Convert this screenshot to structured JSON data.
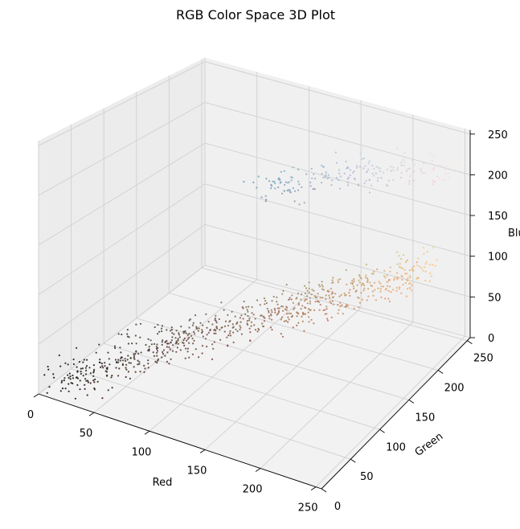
{
  "chart_data": {
    "type": "scatter",
    "projection": "3d",
    "title": "RGB Color Space 3D Plot",
    "xlabel": "Red",
    "ylabel": "Green",
    "zlabel": "Blue",
    "xlim": [
      0,
      255
    ],
    "ylim": [
      0,
      255
    ],
    "zlim": [
      0,
      255
    ],
    "xticks": [
      0,
      50,
      100,
      150,
      200,
      250
    ],
    "yticks": [
      0,
      50,
      100,
      150,
      200,
      250
    ],
    "zticks": [
      0,
      50,
      100,
      150,
      200,
      250
    ],
    "grid": true,
    "point_color_rule": "each point is drawn in its own RGB color",
    "series": [
      {
        "values": [
          [
            20,
            15,
            15
          ],
          [
            25,
            18,
            16
          ],
          [
            30,
            22,
            20
          ],
          [
            35,
            25,
            22
          ],
          [
            40,
            30,
            28
          ],
          [
            45,
            33,
            30
          ],
          [
            50,
            38,
            34
          ],
          [
            55,
            40,
            36
          ],
          [
            60,
            45,
            40
          ],
          [
            65,
            48,
            42
          ],
          [
            70,
            52,
            45
          ],
          [
            75,
            55,
            48
          ],
          [
            80,
            60,
            52
          ],
          [
            85,
            62,
            55
          ],
          [
            90,
            66,
            58
          ],
          [
            95,
            70,
            60
          ],
          [
            100,
            72,
            62
          ],
          [
            105,
            76,
            64
          ],
          [
            110,
            80,
            66
          ],
          [
            115,
            82,
            68
          ],
          [
            120,
            86,
            70
          ],
          [
            125,
            90,
            72
          ],
          [
            130,
            94,
            74
          ],
          [
            135,
            96,
            76
          ],
          [
            140,
            100,
            78
          ],
          [
            145,
            104,
            80
          ],
          [
            150,
            108,
            82
          ],
          [
            155,
            112,
            84
          ],
          [
            160,
            116,
            86
          ],
          [
            165,
            120,
            88
          ],
          [
            170,
            124,
            90
          ],
          [
            175,
            128,
            92
          ],
          [
            180,
            132,
            94
          ],
          [
            185,
            136,
            96
          ],
          [
            190,
            140,
            98
          ],
          [
            195,
            144,
            100
          ],
          [
            200,
            148,
            102
          ],
          [
            205,
            152,
            104
          ],
          [
            210,
            156,
            106
          ],
          [
            215,
            160,
            108
          ],
          [
            220,
            165,
            110
          ],
          [
            225,
            170,
            112
          ],
          [
            230,
            175,
            115
          ],
          [
            235,
            180,
            118
          ],
          [
            240,
            185,
            120
          ],
          [
            245,
            190,
            122
          ],
          [
            250,
            195,
            125
          ],
          [
            140,
            170,
            195
          ],
          [
            150,
            175,
            200
          ],
          [
            160,
            180,
            205
          ],
          [
            170,
            185,
            208
          ],
          [
            180,
            190,
            210
          ],
          [
            190,
            195,
            212
          ],
          [
            200,
            200,
            214
          ],
          [
            210,
            205,
            216
          ],
          [
            220,
            210,
            218
          ],
          [
            230,
            215,
            220
          ],
          [
            240,
            220,
            222
          ],
          [
            250,
            225,
            225
          ],
          [
            130,
            165,
            190
          ],
          [
            120,
            160,
            185
          ]
        ]
      }
    ]
  }
}
